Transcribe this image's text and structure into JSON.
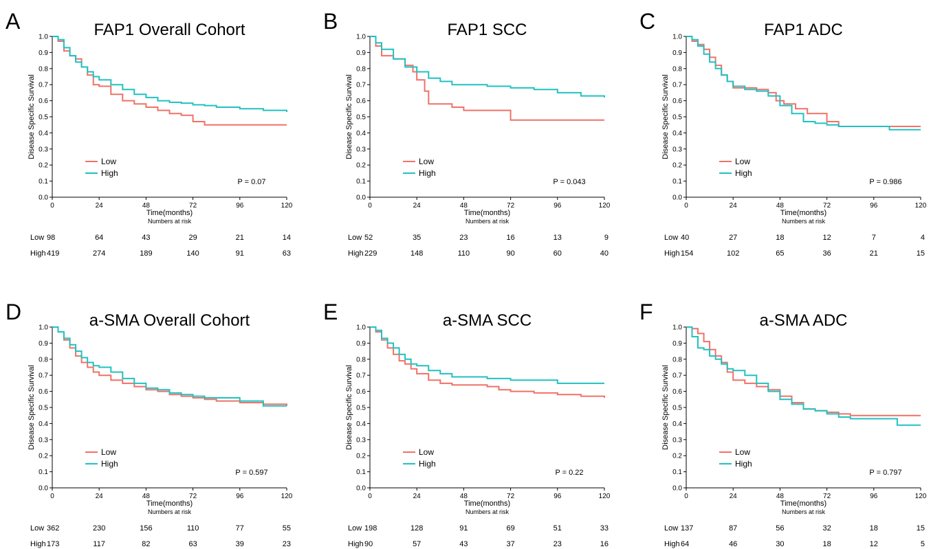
{
  "colors": {
    "low": "#F07167",
    "high": "#20C1C1"
  },
  "chart_data": [
    {
      "type": "line",
      "letter": "A",
      "title": "FAP1 Overall Cohort",
      "xlabel": "Time(months)",
      "ylabel": "Disease Specific Survival",
      "xlim": [
        0,
        120
      ],
      "ylim": [
        0,
        1
      ],
      "xticks": [
        "0",
        "24",
        "48",
        "72",
        "96",
        "120"
      ],
      "yticks": [
        "0.0",
        "0.1",
        "0.2",
        "0.3",
        "0.4",
        "0.5",
        "0.6",
        "0.7",
        "0.8",
        "0.9",
        "1.0"
      ],
      "legend": [
        "Low",
        "High"
      ],
      "legend_position": "bottom-left",
      "p_value": "P = 0.07",
      "risk_title": "Numbers at risk",
      "risk_rows": [
        {
          "label": "Low",
          "values": [
            "98",
            "64",
            "43",
            "29",
            "21",
            "14"
          ]
        },
        {
          "label": "High",
          "values": [
            "419",
            "274",
            "189",
            "140",
            "91",
            "63"
          ]
        }
      ],
      "series": [
        {
          "name": "Low",
          "x": [
            0,
            3,
            6,
            9,
            12,
            15,
            18,
            21,
            24,
            30,
            36,
            42,
            48,
            54,
            60,
            66,
            72,
            78,
            84,
            96,
            108,
            120
          ],
          "y": [
            1.0,
            0.97,
            0.91,
            0.88,
            0.86,
            0.81,
            0.76,
            0.7,
            0.69,
            0.64,
            0.6,
            0.58,
            0.56,
            0.54,
            0.52,
            0.51,
            0.47,
            0.45,
            0.45,
            0.45,
            0.45,
            0.45
          ]
        },
        {
          "name": "High",
          "x": [
            0,
            3,
            6,
            9,
            12,
            15,
            18,
            21,
            24,
            30,
            36,
            42,
            48,
            54,
            60,
            66,
            72,
            78,
            84,
            96,
            108,
            120
          ],
          "y": [
            1.0,
            0.98,
            0.93,
            0.88,
            0.84,
            0.81,
            0.78,
            0.75,
            0.73,
            0.7,
            0.67,
            0.64,
            0.62,
            0.6,
            0.59,
            0.585,
            0.575,
            0.57,
            0.56,
            0.55,
            0.54,
            0.53
          ]
        }
      ]
    },
    {
      "type": "line",
      "letter": "B",
      "title": "FAP1 SCC",
      "xlabel": "Time(months)",
      "ylabel": "Disease Specific Survival",
      "xlim": [
        0,
        120
      ],
      "ylim": [
        0,
        1
      ],
      "xticks": [
        "0",
        "24",
        "48",
        "72",
        "96",
        "120"
      ],
      "yticks": [
        "0.0",
        "0.1",
        "0.2",
        "0.3",
        "0.4",
        "0.5",
        "0.6",
        "0.7",
        "0.8",
        "0.9",
        "1.0"
      ],
      "legend": [
        "Low",
        "High"
      ],
      "legend_position": "bottom-left",
      "p_value": "P = 0.043",
      "risk_title": "Numbers at risk",
      "risk_rows": [
        {
          "label": "Low",
          "values": [
            "52",
            "35",
            "23",
            "16",
            "13",
            "9"
          ]
        },
        {
          "label": "High",
          "values": [
            "229",
            "148",
            "110",
            "90",
            "60",
            "40"
          ]
        }
      ],
      "series": [
        {
          "name": "Low",
          "x": [
            0,
            3,
            6,
            12,
            18,
            22,
            24,
            28,
            30,
            36,
            42,
            48,
            60,
            70,
            72,
            84,
            96,
            108,
            120
          ],
          "y": [
            1.0,
            0.94,
            0.88,
            0.86,
            0.82,
            0.78,
            0.73,
            0.66,
            0.58,
            0.58,
            0.56,
            0.54,
            0.54,
            0.54,
            0.48,
            0.48,
            0.48,
            0.48,
            0.48
          ]
        },
        {
          "name": "High",
          "x": [
            0,
            3,
            6,
            12,
            18,
            24,
            30,
            36,
            42,
            48,
            60,
            72,
            84,
            96,
            108,
            120
          ],
          "y": [
            1.0,
            0.96,
            0.92,
            0.86,
            0.81,
            0.78,
            0.74,
            0.72,
            0.7,
            0.7,
            0.69,
            0.68,
            0.67,
            0.65,
            0.63,
            0.62
          ]
        }
      ]
    },
    {
      "type": "line",
      "letter": "C",
      "title": "FAP1 ADC",
      "xlabel": "Time(months)",
      "ylabel": "Disease Specific Survival",
      "xlim": [
        0,
        120
      ],
      "ylim": [
        0,
        1
      ],
      "xticks": [
        "0",
        "24",
        "48",
        "72",
        "96",
        "120"
      ],
      "yticks": [
        "0.0",
        "0.1",
        "0.2",
        "0.3",
        "0.4",
        "0.5",
        "0.6",
        "0.7",
        "0.8",
        "0.9",
        "1.0"
      ],
      "legend": [
        "Low",
        "High"
      ],
      "legend_position": "bottom-left",
      "p_value": "P = 0.986",
      "risk_title": "Numbers at risk",
      "risk_rows": [
        {
          "label": "Low",
          "values": [
            "40",
            "27",
            "18",
            "12",
            "7",
            "4"
          ]
        },
        {
          "label": "High",
          "values": [
            "154",
            "102",
            "65",
            "36",
            "21",
            "15"
          ]
        }
      ],
      "series": [
        {
          "name": "Low",
          "x": [
            0,
            3,
            6,
            9,
            12,
            15,
            18,
            21,
            24,
            30,
            36,
            42,
            46,
            50,
            56,
            62,
            68,
            72,
            78,
            90,
            104,
            120
          ],
          "y": [
            1.0,
            0.97,
            0.95,
            0.92,
            0.87,
            0.82,
            0.76,
            0.72,
            0.68,
            0.68,
            0.67,
            0.65,
            0.6,
            0.58,
            0.55,
            0.52,
            0.52,
            0.47,
            0.44,
            0.44,
            0.44,
            0.44
          ]
        },
        {
          "name": "High",
          "x": [
            0,
            3,
            6,
            9,
            12,
            15,
            18,
            21,
            24,
            30,
            36,
            42,
            48,
            54,
            60,
            66,
            72,
            78,
            84,
            96,
            104,
            120
          ],
          "y": [
            1.0,
            0.98,
            0.94,
            0.89,
            0.84,
            0.8,
            0.76,
            0.72,
            0.69,
            0.67,
            0.66,
            0.63,
            0.57,
            0.52,
            0.47,
            0.46,
            0.45,
            0.44,
            0.44,
            0.44,
            0.42,
            0.42
          ]
        }
      ]
    },
    {
      "type": "line",
      "letter": "D",
      "title": "a-SMA Overall Cohort",
      "xlabel": "Time(months)",
      "ylabel": "Disease Specific Survival",
      "xlim": [
        0,
        120
      ],
      "ylim": [
        0,
        1
      ],
      "xticks": [
        "0",
        "24",
        "48",
        "72",
        "96",
        "120"
      ],
      "yticks": [
        "0.0",
        "0.1",
        "0.2",
        "0.3",
        "0.4",
        "0.5",
        "0.6",
        "0.7",
        "0.8",
        "0.9",
        "1.0"
      ],
      "legend": [
        "Low",
        "High"
      ],
      "legend_position": "bottom-left",
      "p_value": "P = 0.597",
      "risk_title": "Numbers at risk",
      "risk_rows": [
        {
          "label": "Low",
          "values": [
            "362",
            "230",
            "156",
            "110",
            "77",
            "55"
          ]
        },
        {
          "label": "High",
          "values": [
            "173",
            "117",
            "82",
            "63",
            "39",
            "23"
          ]
        }
      ],
      "series": [
        {
          "name": "Low",
          "x": [
            0,
            3,
            6,
            9,
            12,
            15,
            18,
            21,
            24,
            30,
            36,
            42,
            48,
            54,
            60,
            66,
            72,
            78,
            84,
            96,
            108,
            120
          ],
          "y": [
            1.0,
            0.97,
            0.92,
            0.87,
            0.82,
            0.78,
            0.75,
            0.72,
            0.7,
            0.67,
            0.65,
            0.63,
            0.61,
            0.6,
            0.58,
            0.57,
            0.56,
            0.55,
            0.54,
            0.53,
            0.52,
            0.51
          ]
        },
        {
          "name": "High",
          "x": [
            0,
            3,
            6,
            9,
            12,
            15,
            18,
            21,
            24,
            30,
            36,
            42,
            48,
            54,
            60,
            66,
            72,
            78,
            84,
            96,
            108,
            120
          ],
          "y": [
            1.0,
            0.97,
            0.93,
            0.89,
            0.85,
            0.81,
            0.78,
            0.76,
            0.75,
            0.72,
            0.68,
            0.65,
            0.62,
            0.61,
            0.59,
            0.58,
            0.57,
            0.56,
            0.56,
            0.54,
            0.51,
            0.51
          ]
        }
      ]
    },
    {
      "type": "line",
      "letter": "E",
      "title": "a-SMA SCC",
      "xlabel": "Time(months)",
      "ylabel": "Disease Specific Survival",
      "xlim": [
        0,
        120
      ],
      "ylim": [
        0,
        1
      ],
      "xticks": [
        "0",
        "24",
        "48",
        "72",
        "96",
        "120"
      ],
      "yticks": [
        "0.0",
        "0.1",
        "0.2",
        "0.3",
        "0.4",
        "0.5",
        "0.6",
        "0.7",
        "0.8",
        "0.9",
        "1.0"
      ],
      "legend": [
        "Low",
        "High"
      ],
      "legend_position": "bottom-left",
      "p_value": "P = 0.22",
      "risk_title": "Numbers at risk",
      "risk_rows": [
        {
          "label": "Low",
          "values": [
            "198",
            "128",
            "91",
            "69",
            "51",
            "33"
          ]
        },
        {
          "label": "High",
          "values": [
            "90",
            "57",
            "43",
            "37",
            "23",
            "16"
          ]
        }
      ],
      "series": [
        {
          "name": "Low",
          "x": [
            0,
            3,
            6,
            9,
            12,
            15,
            18,
            21,
            24,
            30,
            36,
            42,
            48,
            60,
            66,
            72,
            78,
            84,
            96,
            108,
            120
          ],
          "y": [
            1.0,
            0.97,
            0.92,
            0.87,
            0.83,
            0.79,
            0.77,
            0.74,
            0.71,
            0.67,
            0.65,
            0.64,
            0.64,
            0.63,
            0.61,
            0.6,
            0.6,
            0.59,
            0.58,
            0.57,
            0.56
          ]
        },
        {
          "name": "High",
          "x": [
            0,
            3,
            6,
            9,
            12,
            15,
            18,
            21,
            24,
            30,
            36,
            42,
            48,
            60,
            72,
            84,
            96,
            108,
            120
          ],
          "y": [
            1.0,
            0.98,
            0.93,
            0.9,
            0.87,
            0.83,
            0.8,
            0.77,
            0.76,
            0.73,
            0.71,
            0.69,
            0.69,
            0.68,
            0.67,
            0.67,
            0.65,
            0.65,
            0.65
          ]
        }
      ]
    },
    {
      "type": "line",
      "letter": "F",
      "title": "a-SMA ADC",
      "xlabel": "Time(months)",
      "ylabel": "Disease Specific Survival",
      "xlim": [
        0,
        120
      ],
      "ylim": [
        0,
        1
      ],
      "xticks": [
        "0",
        "24",
        "48",
        "72",
        "96",
        "120"
      ],
      "yticks": [
        "0.0",
        "0.1",
        "0.2",
        "0.3",
        "0.4",
        "0.5",
        "0.6",
        "0.7",
        "0.8",
        "0.9",
        "1.0"
      ],
      "legend": [
        "Low",
        "High"
      ],
      "legend_position": "bottom-left",
      "p_value": "P = 0.797",
      "risk_title": "Numbers at risk",
      "risk_rows": [
        {
          "label": "Low",
          "values": [
            "137",
            "87",
            "56",
            "32",
            "18",
            "15"
          ]
        },
        {
          "label": "High",
          "values": [
            "64",
            "46",
            "30",
            "18",
            "12",
            "5"
          ]
        }
      ],
      "series": [
        {
          "name": "Low",
          "x": [
            0,
            3,
            6,
            9,
            12,
            15,
            18,
            21,
            24,
            30,
            36,
            42,
            48,
            54,
            60,
            66,
            72,
            78,
            84,
            96,
            108,
            120
          ],
          "y": [
            1.0,
            0.99,
            0.96,
            0.91,
            0.86,
            0.82,
            0.78,
            0.72,
            0.67,
            0.65,
            0.63,
            0.61,
            0.57,
            0.53,
            0.49,
            0.48,
            0.47,
            0.46,
            0.45,
            0.45,
            0.45,
            0.45
          ]
        },
        {
          "name": "High",
          "x": [
            0,
            3,
            6,
            9,
            12,
            15,
            18,
            21,
            24,
            30,
            36,
            42,
            48,
            54,
            60,
            66,
            72,
            78,
            84,
            96,
            108,
            120
          ],
          "y": [
            1.0,
            0.94,
            0.87,
            0.86,
            0.82,
            0.8,
            0.77,
            0.74,
            0.73,
            0.7,
            0.65,
            0.6,
            0.55,
            0.52,
            0.49,
            0.48,
            0.46,
            0.44,
            0.43,
            0.43,
            0.39,
            0.39
          ]
        }
      ]
    }
  ]
}
